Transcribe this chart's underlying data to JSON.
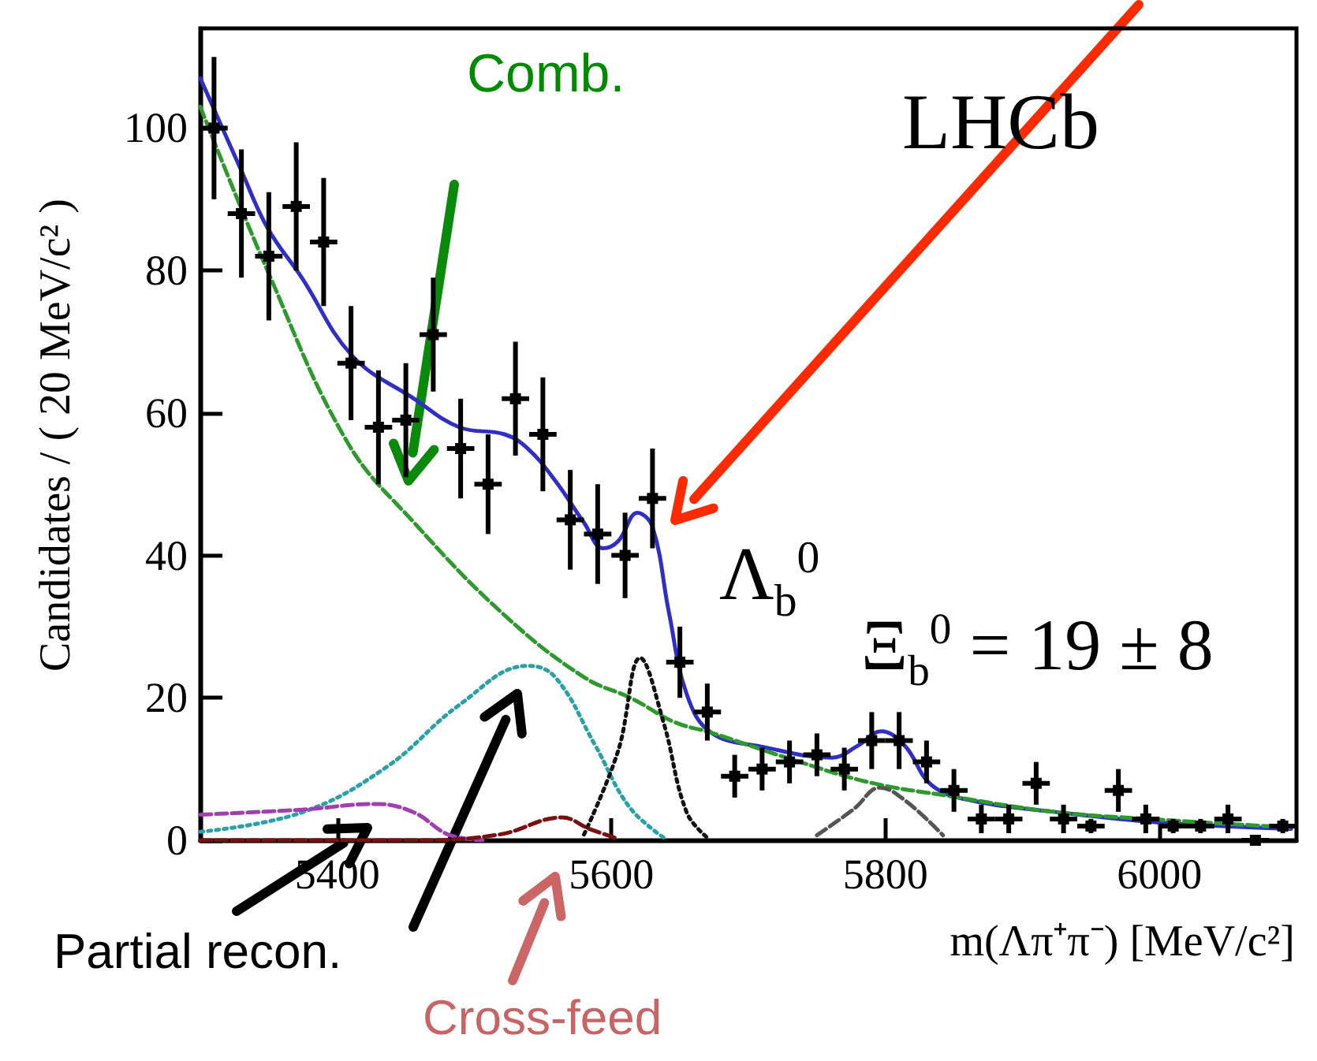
{
  "chart_data": {
    "type": "scatter",
    "xlabel": "m(Λπ⁺π⁻) [MeV/c²]",
    "ylabel": "Candidates / ( 20 MeV/c² )",
    "xlim": [
      5300,
      6100
    ],
    "xticks": [
      5400,
      5600,
      5800,
      6000
    ],
    "ylim": [
      0,
      114
    ],
    "yticks": [
      0,
      20,
      40,
      60,
      80,
      100
    ],
    "grid": false,
    "annotations": [
      "LHCb",
      "Comb.",
      "Λ$_{b}$$^{0}$",
      "Ξ$_{b}$$^{0}$ = 19 ± 8",
      "Partial recon.",
      "Cross-feed"
    ],
    "series": [
      {
        "type": "line",
        "color": "#2f2fc8",
        "line_style": "solid",
        "marker": "none",
        "x": [
          5300,
          5330,
          5349,
          5374,
          5411,
          5456,
          5489,
          5522,
          5539,
          5559,
          5580,
          5594,
          5605,
          5619,
          5630,
          5642,
          5655,
          5673,
          5711,
          5761,
          5780,
          5797,
          5814,
          5834,
          5865,
          5923,
          6000,
          6096
        ],
        "values": [
          107,
          94,
          86,
          79,
          68,
          62,
          58,
          57,
          55,
          50.5,
          44.6,
          41,
          42,
          46,
          44,
          32,
          20.5,
          15.1,
          13.1,
          11.6,
          13.3,
          15.3,
          13.3,
          7.7,
          5.5,
          4.0,
          2.5,
          1.6
        ]
      },
      {
        "type": "line",
        "color": "#2e9a2e",
        "line_style": "dashed",
        "marker": "none",
        "x": [
          5300,
          5349,
          5407,
          5456,
          5522,
          5580,
          5615,
          5646,
          5673,
          5731,
          5789,
          5847,
          5923,
          6000,
          6096
        ],
        "values": [
          103,
          80,
          56,
          44.6,
          31.6,
          22.9,
          19.9,
          16.6,
          15.1,
          11.4,
          8.1,
          6.2,
          4.0,
          2.9,
          1.8
        ]
      },
      {
        "type": "line",
        "color": "#2aa0a8",
        "line_style": "dotted",
        "marker": "none",
        "x": [
          5300,
          5374,
          5436,
          5489,
          5539,
          5559,
          5588,
          5613,
          5638
        ],
        "values": [
          1.2,
          3.9,
          10.3,
          19,
          24.5,
          22.9,
          13.4,
          4.7,
          0.4
        ]
      },
      {
        "type": "line",
        "color": "#111111",
        "line_style": "dotted",
        "marker": "none",
        "x": [
          5580,
          5605,
          5621,
          5638,
          5655,
          5671
        ],
        "values": [
          0.8,
          12.6,
          25.6,
          16.6,
          3.9,
          0.2
        ]
      },
      {
        "type": "line",
        "color": "#555555",
        "line_style": "dashed",
        "marker": "none",
        "x": [
          5750,
          5777,
          5796,
          5815,
          5842
        ],
        "values": [
          0.7,
          4.4,
          7.4,
          5.5,
          0.7
        ]
      },
      {
        "type": "line",
        "color": "#a040b0",
        "line_style": "dashed",
        "marker": "none",
        "x": [
          5300,
          5374,
          5428,
          5456,
          5481,
          5506
        ],
        "values": [
          3.6,
          4.3,
          5.1,
          3.9,
          0.8,
          0
        ]
      },
      {
        "type": "line",
        "color": "#7a1010",
        "line_style": "dashed",
        "marker": "none",
        "x": [
          5300,
          5456,
          5518,
          5564,
          5584,
          5605
        ],
        "values": [
          0,
          0,
          0.8,
          3.2,
          1.6,
          0.2
        ]
      },
      {
        "type": "scatter",
        "color": "#000000",
        "marker": "square",
        "x": [
          5310,
          5330,
          5350,
          5370,
          5390,
          5410,
          5430,
          5450,
          5470,
          5490,
          5510,
          5530,
          5550,
          5570,
          5590,
          5610,
          5630,
          5650,
          5670,
          5690,
          5710,
          5730,
          5750,
          5770,
          5790,
          5810,
          5830,
          5850,
          5870,
          5890,
          5910,
          5930,
          5950,
          5970,
          5990,
          6010,
          6030,
          6050,
          6070,
          6090
        ],
        "values": [
          100,
          88,
          82,
          89,
          84,
          67,
          58,
          59,
          71,
          55,
          50,
          62,
          57,
          45,
          43,
          40,
          48,
          25,
          18,
          9,
          10,
          11,
          12,
          10,
          14,
          14,
          11,
          7,
          3,
          3,
          8,
          3,
          2,
          7,
          3,
          2,
          2,
          3,
          0,
          2
        ],
        "errors": [
          10,
          9,
          9,
          9,
          9,
          8,
          8,
          8,
          8,
          7,
          7,
          8,
          8,
          7,
          7,
          6,
          7,
          5,
          4,
          3,
          3,
          3,
          3,
          3,
          4,
          4,
          3,
          3,
          2,
          2,
          3,
          2,
          1,
          3,
          2,
          1,
          1,
          2,
          null,
          1
        ],
        "xerrors": [
          10,
          10,
          10,
          10,
          10,
          10,
          10,
          10,
          10,
          10,
          10,
          10,
          10,
          10,
          10,
          10,
          10,
          10,
          10,
          10,
          10,
          10,
          10,
          10,
          10,
          10,
          10,
          10,
          10,
          10,
          10,
          10,
          10,
          10,
          10,
          10,
          10,
          10,
          10,
          10
        ]
      }
    ]
  }
}
